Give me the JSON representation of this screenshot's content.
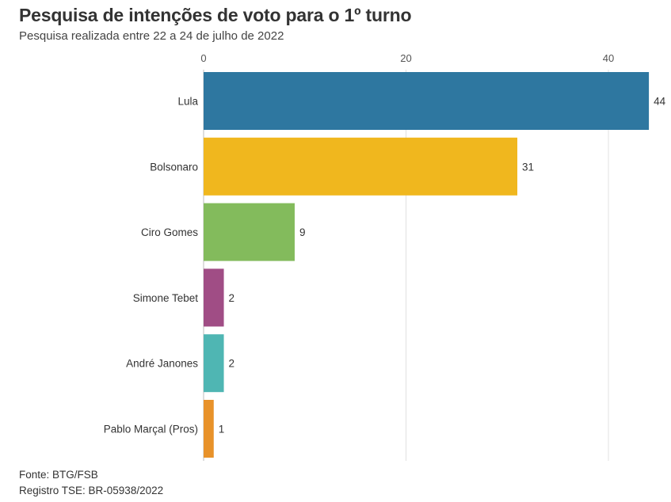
{
  "header": {
    "title": "Pesquisa de intenções de voto para o 1º turno",
    "subtitle": "Pesquisa realizada entre 22 a 24 de julho de 2022"
  },
  "footer": {
    "source": "Fonte: BTG/FSB",
    "registry": "Registro TSE: BR-05938/2022"
  },
  "chart_data": {
    "type": "bar",
    "orientation": "horizontal",
    "title": "Pesquisa de intenções de voto para o 1º turno",
    "subtitle": "Pesquisa realizada entre 22 a 24 de julho de 2022",
    "xlabel": "",
    "ylabel": "",
    "xlim": [
      0,
      44
    ],
    "xticks": [
      0,
      20,
      40
    ],
    "grid": true,
    "categories": [
      "Lula",
      "Bolsonaro",
      "Ciro Gomes",
      "Simone Tebet",
      "André Janones",
      "Pablo Marçal (Pros)"
    ],
    "values": [
      44,
      31,
      9,
      2,
      2,
      1
    ],
    "colors": [
      "#2e77a0",
      "#f0b71e",
      "#83bb5c",
      "#a04d85",
      "#4fb6b3",
      "#e8922a"
    ]
  }
}
